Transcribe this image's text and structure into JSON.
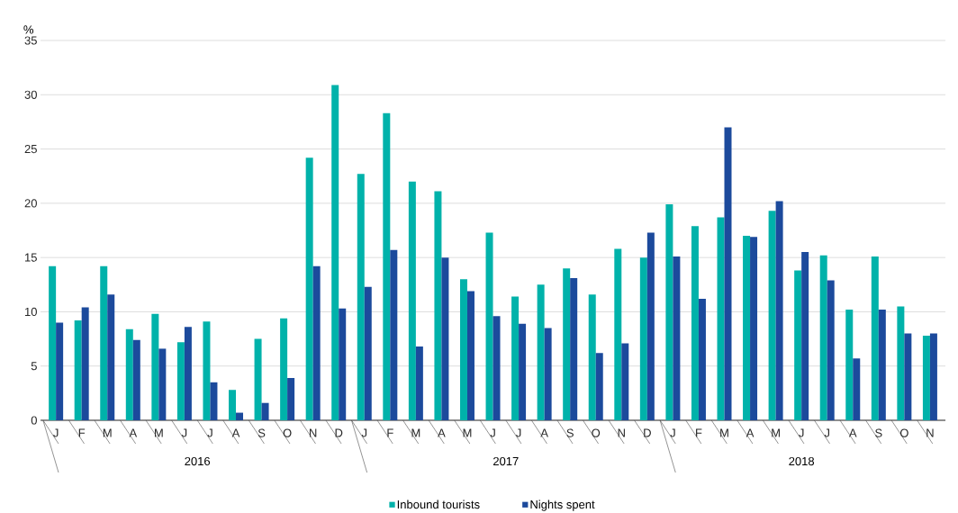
{
  "chart_data": {
    "type": "bar",
    "ylabel": "%",
    "categories": [
      "J",
      "F",
      "M",
      "A",
      "M",
      "J",
      "J",
      "A",
      "S",
      "O",
      "N",
      "D",
      "J",
      "F",
      "M",
      "A",
      "M",
      "J",
      "J",
      "A",
      "S",
      "O",
      "N",
      "D",
      "J",
      "F",
      "M",
      "A",
      "M",
      "J",
      "J",
      "A",
      "S",
      "O",
      "N"
    ],
    "series": [
      {
        "name": "Inbound tourists",
        "color": "#00b2aa",
        "values": [
          14.2,
          9.2,
          14.2,
          8.4,
          9.8,
          7.2,
          9.1,
          2.8,
          7.5,
          9.4,
          24.2,
          30.9,
          22.7,
          28.3,
          22.0,
          21.1,
          13.0,
          17.3,
          11.4,
          12.5,
          14.0,
          11.6,
          15.8,
          15.0,
          19.9,
          17.9,
          18.7,
          17.0,
          19.3,
          13.8,
          15.2,
          10.2,
          15.1,
          10.5,
          7.8
        ]
      },
      {
        "name": "Nights spent",
        "color": "#1c4a9c",
        "values": [
          9.0,
          10.4,
          11.6,
          7.4,
          6.6,
          8.6,
          3.5,
          0.7,
          1.6,
          3.9,
          14.2,
          10.3,
          12.3,
          15.7,
          6.8,
          15.0,
          11.9,
          9.6,
          8.9,
          8.5,
          13.1,
          6.2,
          7.1,
          17.3,
          15.1,
          11.2,
          27.0,
          16.9,
          20.2,
          15.5,
          12.9,
          5.7,
          10.2,
          8.0,
          8.0
        ]
      }
    ],
    "ylim": [
      0,
      35
    ],
    "yticks": [
      0,
      5,
      10,
      15,
      20,
      25,
      30,
      35
    ],
    "grid": "y",
    "legend": "bottom",
    "annotations": [
      "2016",
      "2017",
      "2018"
    ]
  }
}
